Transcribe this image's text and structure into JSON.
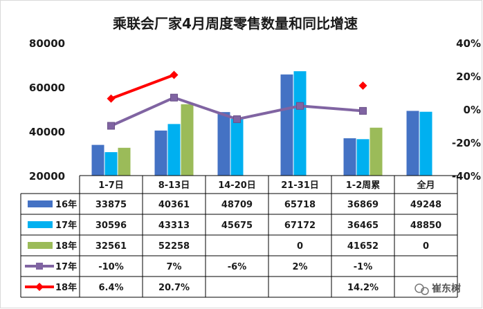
{
  "chart_data": {
    "type": "bar",
    "title": "乘联会厂家4月周度零售数量和同比增速",
    "categories": [
      "1-7日",
      "8-13日",
      "14-20日",
      "21-31日",
      "1-2周累",
      "全月"
    ],
    "y_left": {
      "ticks": [
        "80000",
        "60000",
        "40000",
        "20000"
      ],
      "range": [
        20000,
        80000
      ]
    },
    "y_right": {
      "ticks": [
        "40%",
        "20%",
        "0%",
        "-20%",
        "-40%"
      ],
      "range": [
        -40,
        40
      ]
    },
    "bar_series": [
      {
        "name": "16年",
        "values": [
          33875,
          40361,
          48709,
          65718,
          36869,
          49248
        ],
        "labels": [
          "33875",
          "40361",
          "48709",
          "65718",
          "36869",
          "49248"
        ],
        "color": "#4472c4"
      },
      {
        "name": "17年",
        "values": [
          30596,
          43313,
          45675,
          67172,
          36465,
          48850
        ],
        "labels": [
          "30596",
          "43313",
          "45675",
          "67172",
          "36465",
          "48850"
        ],
        "color": "#00b0f0"
      },
      {
        "name": "18年",
        "values": [
          32561,
          52258,
          null,
          0,
          41652,
          0
        ],
        "labels": [
          "32561",
          "52258",
          "",
          "0",
          "41652",
          "0"
        ],
        "color": "#9bbb59"
      }
    ],
    "line_series": [
      {
        "name": "17年",
        "values": [
          -10,
          7,
          -6,
          2,
          -1,
          null
        ],
        "labels": [
          "-10%",
          "7%",
          "-6%",
          "2%",
          "-1%",
          ""
        ],
        "color": "#8064a2",
        "marker": "square"
      },
      {
        "name": "18年",
        "values": [
          6.4,
          20.7,
          null,
          null,
          14.2,
          null
        ],
        "labels": [
          "6.4%",
          "20.7%",
          "",
          "",
          "14.2%",
          ""
        ],
        "color": "#ff0000",
        "marker": "diamond"
      }
    ],
    "legend": "data-table",
    "grid": false
  },
  "watermark": {
    "text": "崔东树"
  }
}
